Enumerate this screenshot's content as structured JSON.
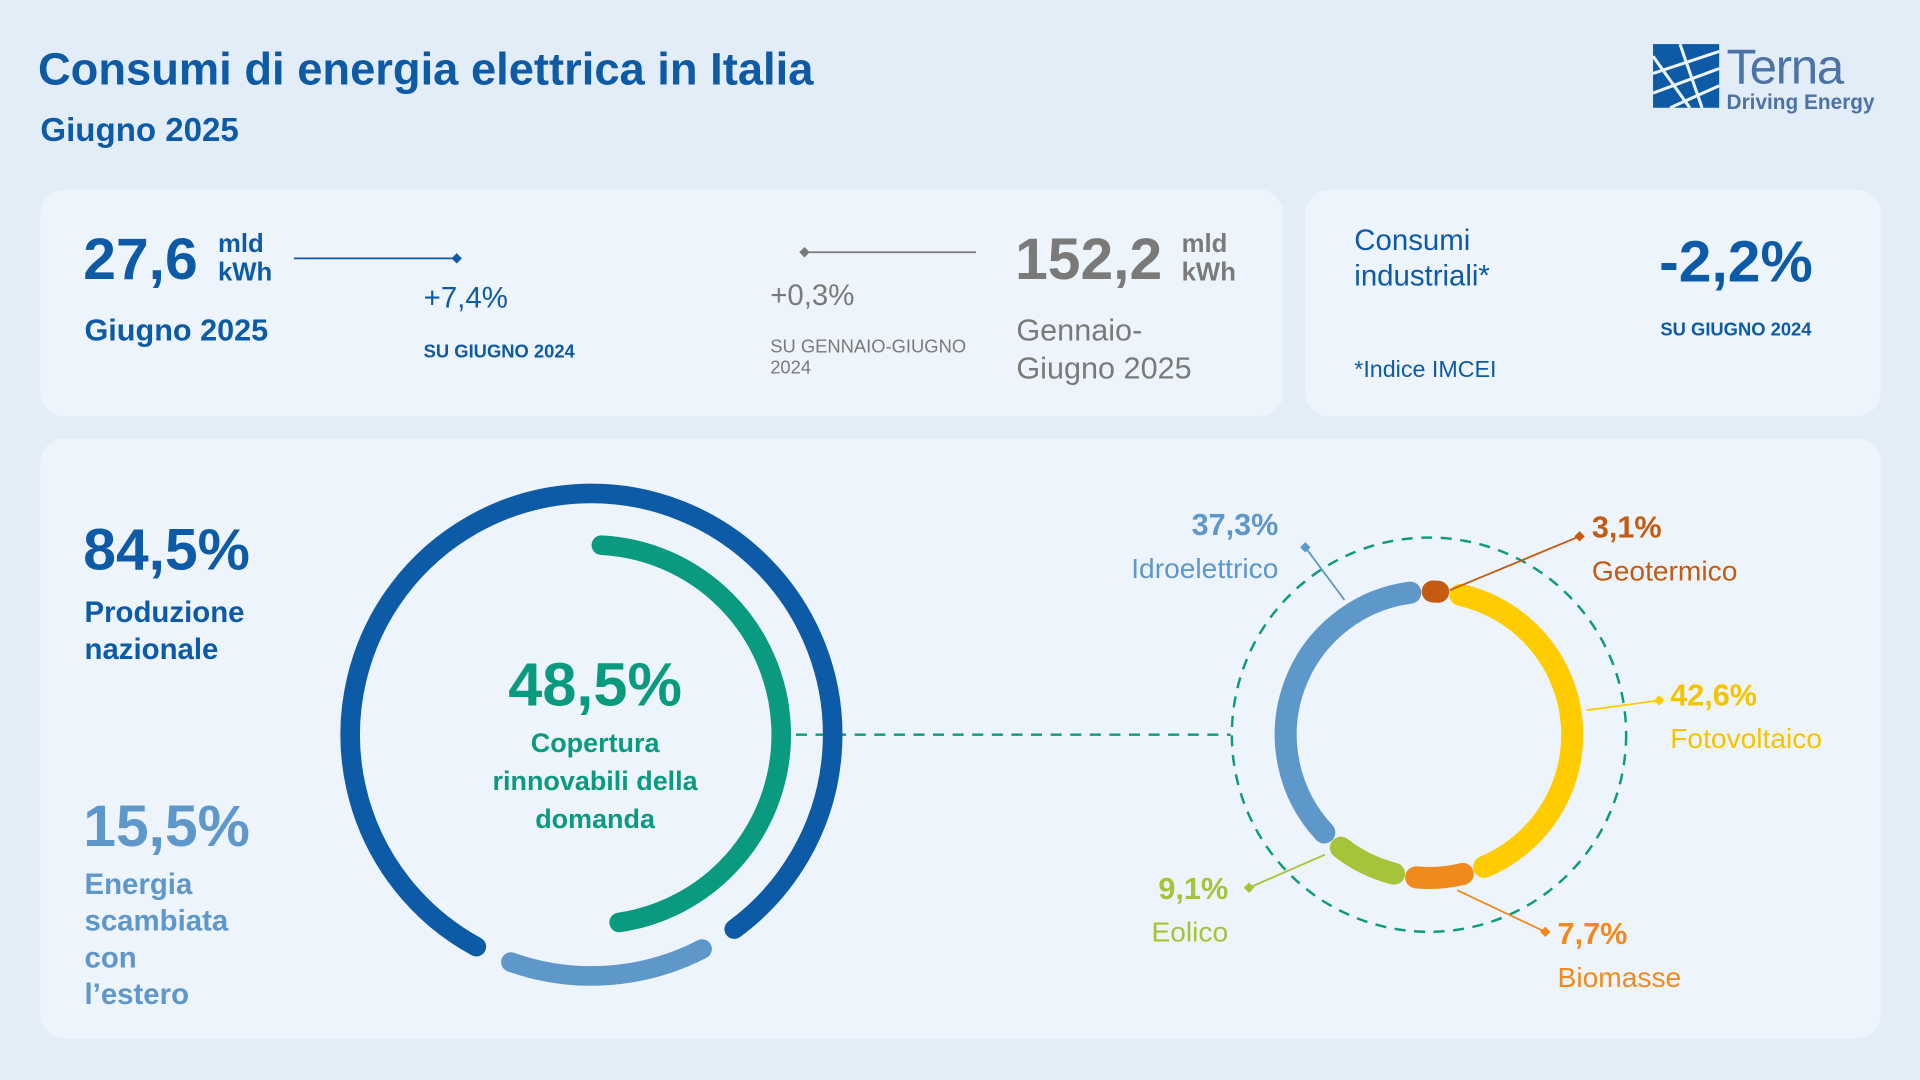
{
  "header": {
    "title": "Consumi di energia elettrica in Italia",
    "subtitle": "Giugno 2025"
  },
  "logo": {
    "name": "Terna",
    "tagline": "Driving Energy"
  },
  "monthly": {
    "value": "27,6",
    "unit": [
      "mld",
      "kWh"
    ],
    "period": "Giugno 2025",
    "change": "+7,4%",
    "comparison": "SU GIUGNO 2024"
  },
  "cumulative": {
    "value": "152,2",
    "unit": [
      "mld",
      "kWh"
    ],
    "period": "Gennaio-Giugno 2025",
    "change": "+0,3%",
    "comparison": "SU GENNAIO-GIUGNO 2024"
  },
  "industrial": {
    "label": "Consumi industriali*",
    "change": "-2,2%",
    "comparison": "SU GIUGNO 2024",
    "note": "*Indice IMCEI"
  },
  "chart_data": [
    {
      "type": "donut",
      "categories": [
        "Produzione nazionale",
        "Energia scambiata con l’estero"
      ],
      "values": [
        84.5,
        15.5
      ],
      "value_labels": [
        "84,5%",
        "15,5%"
      ],
      "colors": [
        "#0d5aa7",
        "#5e97c9"
      ]
    },
    {
      "type": "gauge",
      "title": "Copertura rinnovabili della domanda",
      "values": [
        48.5
      ],
      "value_labels": [
        "48,5%"
      ],
      "color": "#0a9a7f"
    },
    {
      "type": "donut",
      "categories": [
        "Geotermico",
        "Fotovoltaico",
        "Biomasse",
        "Eolico",
        "Idroelettrico"
      ],
      "values": [
        3.1,
        42.6,
        7.7,
        9.1,
        37.3
      ],
      "value_labels": [
        "3,1%",
        "42,6%",
        "7,7%",
        "9,1%",
        "37,3%"
      ],
      "colors": [
        "#c55a11",
        "#ffcc00",
        "#f08a1c",
        "#a6c43a",
        "#5e97c9"
      ]
    }
  ]
}
